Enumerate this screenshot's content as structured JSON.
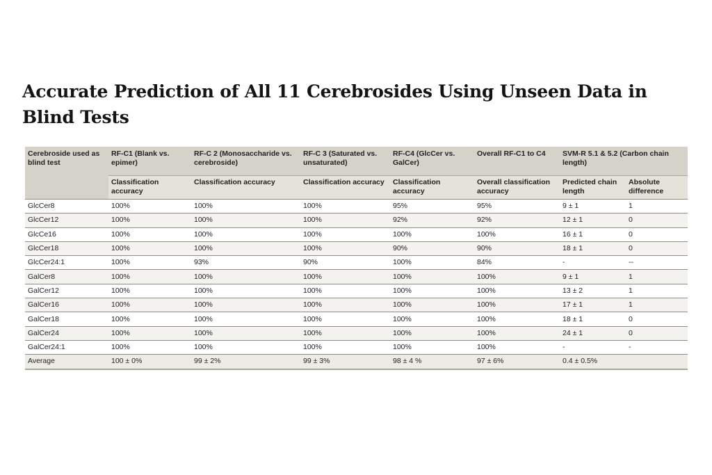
{
  "title": "Accurate Prediction of All 11 Cerebrosides Using Unseen Data in Blind Tests",
  "header_row1": [
    "Cerebroside used as blind test",
    "RF-C1 (Blank vs. epimer)",
    "RF-C 2 (Monosaccharide vs. cerebroside)",
    "RF-C 3 (Saturated vs. unsaturated)",
    "RF-C4 (GlcCer vs. GalCer)",
    "Overall RF-C1 to C4",
    "SVM-R 5.1 & 5.2 (Carbon chain length)"
  ],
  "header_row2": [
    "Classification accuracy",
    "Classification accuracy",
    "Classification accuracy",
    "Classification accuracy",
    "Overall classification accuracy",
    "Predicted chain length",
    "Absolute difference"
  ],
  "rows": [
    [
      "GlcCer8",
      "100%",
      "100%",
      "100%",
      "95%",
      "95%",
      "9 ± 1",
      "1"
    ],
    [
      "GlcCer12",
      "100%",
      "100%",
      "100%",
      "92%",
      "92%",
      "12 ± 1",
      "0"
    ],
    [
      "GlcCe16",
      "100%",
      "100%",
      "100%",
      "100%",
      "100%",
      "16 ± 1",
      "0"
    ],
    [
      "GlcCer18",
      "100%",
      "100%",
      "100%",
      "90%",
      "90%",
      "18 ± 1",
      "0"
    ],
    [
      "GlcCer24:1",
      "100%",
      "93%",
      "90%",
      "100%",
      "84%",
      "-",
      "--"
    ],
    [
      "GalCer8",
      "100%",
      "100%",
      "100%",
      "100%",
      "100%",
      "9 ± 1",
      "1"
    ],
    [
      "GalCer12",
      "100%",
      "100%",
      "100%",
      "100%",
      "100%",
      "13 ± 2",
      "1"
    ],
    [
      "GalCer16",
      "100%",
      "100%",
      "100%",
      "100%",
      "100%",
      "17 ± 1",
      "1"
    ],
    [
      "GalCer18",
      "100%",
      "100%",
      "100%",
      "100%",
      "100%",
      "18 ± 1",
      "0"
    ],
    [
      "GalCer24",
      "100%",
      "100%",
      "100%",
      "100%",
      "100%",
      "24 ± 1",
      "0"
    ],
    [
      "GalCer24:1",
      "100%",
      "100%",
      "100%",
      "100%",
      "100%",
      "-",
      "-"
    ]
  ],
  "average_row": [
    "Average",
    "100 ± 0%",
    "99 ± 2%",
    "99 ± 3%",
    "98 ± 4 %",
    "97 ± 6%",
    "0.4 ± 0.5%",
    ""
  ]
}
